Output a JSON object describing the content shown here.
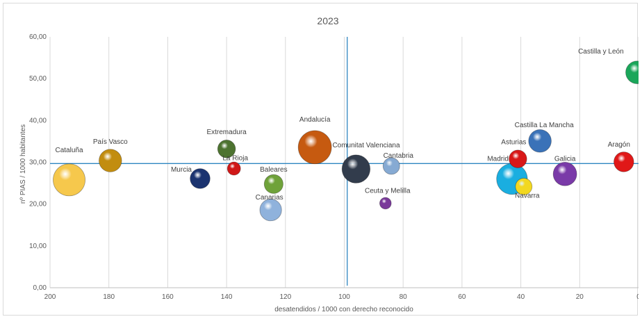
{
  "chart_data": {
    "type": "scatter",
    "title": "2023",
    "xlabel": "desatendidos / 1000 con derecho reconocido",
    "ylabel": "nº PIAS / 1000 habitantes",
    "xlim": [
      200,
      0
    ],
    "ylim": [
      0,
      60
    ],
    "x_ticks": [
      "200",
      "180",
      "160",
      "140",
      "120",
      "100",
      "80",
      "60",
      "40",
      "20",
      "0"
    ],
    "y_ticks": [
      "0,00",
      "10,00",
      "20,00",
      "30,00",
      "40,00",
      "50,00",
      "60,00"
    ],
    "grid": "vertical",
    "reference_lines": {
      "x": 99,
      "y": 29.7
    },
    "points": [
      {
        "label": "Cataluña",
        "x": 193.5,
        "y": 25.8,
        "size": 13,
        "color": "#f6c84c"
      },
      {
        "label": "País Vasco",
        "x": 179.5,
        "y": 30.4,
        "size": 6.5,
        "color": "#c28d10"
      },
      {
        "label": "Murcia",
        "x": 149,
        "y": 26.1,
        "size": 5,
        "color": "#1c3470"
      },
      {
        "label": "Extremadura",
        "x": 140,
        "y": 33.2,
        "size": 4,
        "color": "#4d7330"
      },
      {
        "label": "La Rioja",
        "x": 137.5,
        "y": 28.5,
        "size": 2.2,
        "color": "#d01818"
      },
      {
        "label": "Baleares",
        "x": 124,
        "y": 24.8,
        "size": 4.5,
        "color": "#6fa23a"
      },
      {
        "label": "Canarias",
        "x": 125,
        "y": 18.6,
        "size": 6,
        "color": "#8fb2dc"
      },
      {
        "label": "Andalucía",
        "x": 110,
        "y": 33.6,
        "size": 14,
        "color": "#c65a10"
      },
      {
        "label": "Comunitat Valenciana",
        "x": 96,
        "y": 28.4,
        "size": 10,
        "color": "#323c4c"
      },
      {
        "label": "Cantabria",
        "x": 84,
        "y": 29.1,
        "size": 3.5,
        "color": "#86aad3"
      },
      {
        "label": "Ceuta y Melilla",
        "x": 86,
        "y": 20.2,
        "size": 1.7,
        "color": "#7a3a9a"
      },
      {
        "label": "Madrid",
        "x": 43,
        "y": 26,
        "size": 12,
        "color": "#1aaee0"
      },
      {
        "label": "Asturias",
        "x": 41,
        "y": 30.8,
        "size": 4,
        "color": "#d81818"
      },
      {
        "label": "Navarra",
        "x": 39,
        "y": 24.2,
        "size": 3.5,
        "color": "#f2d820"
      },
      {
        "label": "Castilla La Mancha",
        "x": 33.5,
        "y": 35.1,
        "size": 6.5,
        "color": "#3a72b8"
      },
      {
        "label": "Galicia",
        "x": 25,
        "y": 27.2,
        "size": 7,
        "color": "#7a3aa8"
      },
      {
        "label": "Aragón",
        "x": 5,
        "y": 30.1,
        "size": 5,
        "color": "#e01818"
      },
      {
        "label": "Castilla y León",
        "x": 0.5,
        "y": 51.5,
        "size": 6.5,
        "color": "#1aa65a"
      }
    ],
    "colors": {
      "reference_line": "#2e86c1",
      "grid": "#d9d9d9",
      "text": "#595959"
    }
  }
}
